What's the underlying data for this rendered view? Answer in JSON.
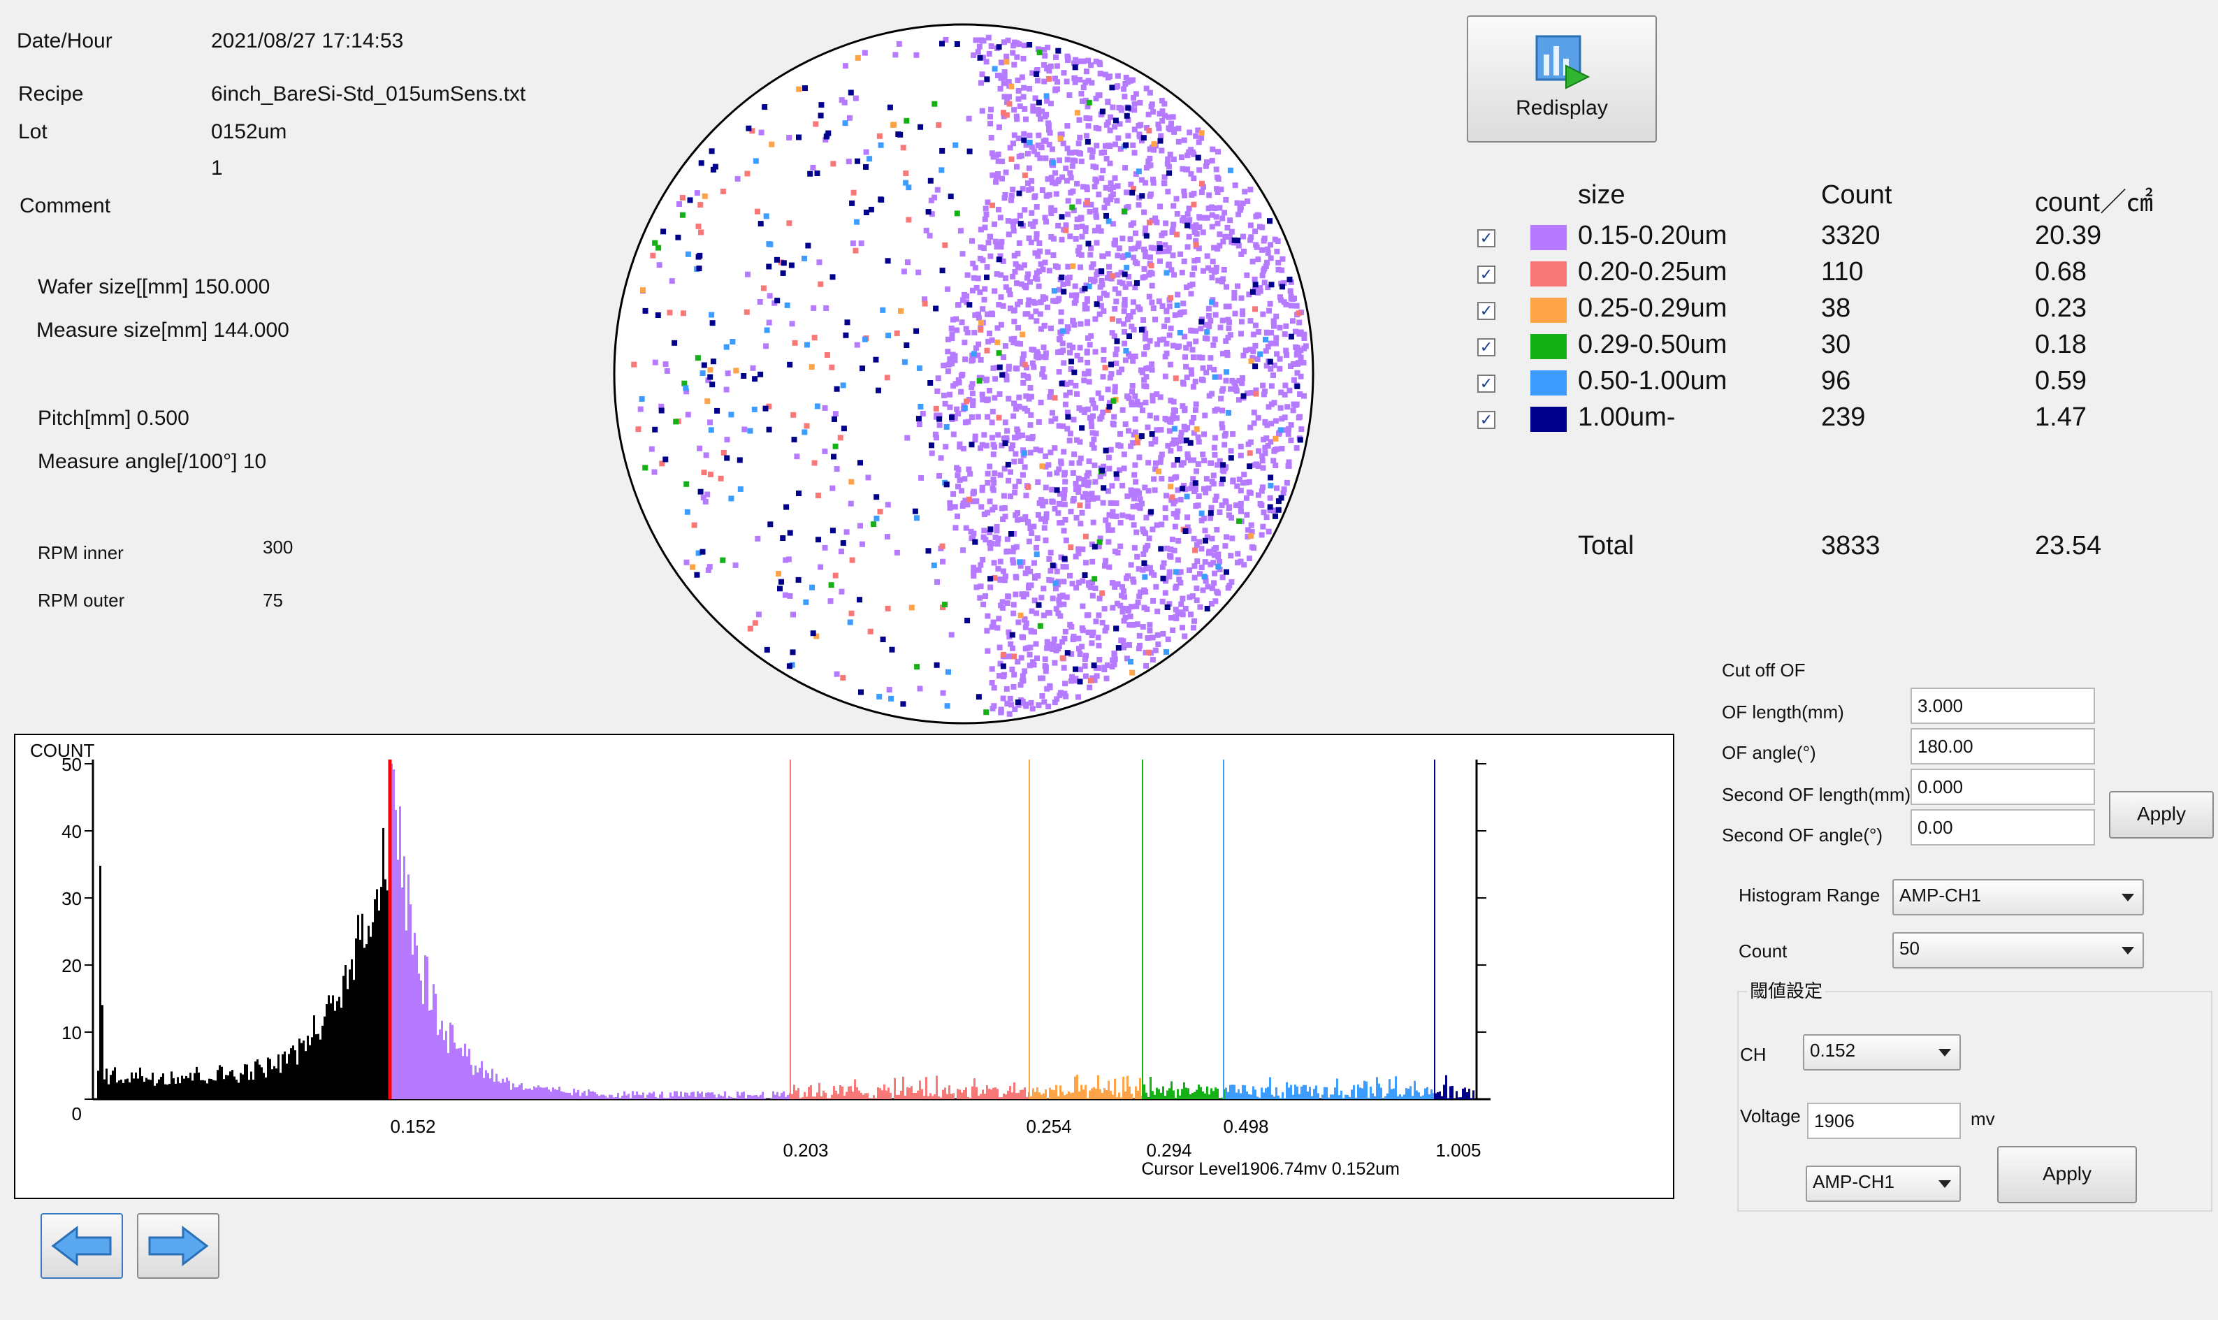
{
  "info": {
    "date_label": "Date/Hour",
    "date_value": "2021/08/27 17:14:53",
    "recipe_label": "Recipe",
    "recipe_value": "6inch_BareSi-Std_015umSens.txt",
    "lot_label": "Lot",
    "lot_value": "0152um",
    "lot_index": "1",
    "comment_label": "Comment",
    "wafer_size": "Wafer size[[mm] 150.000",
    "measure_size": "Measure size[mm] 144.000",
    "pitch": "Pitch[mm] 0.500",
    "measure_angle": "Measure angle[/100°] 10",
    "rpm_inner_label": "RPM inner",
    "rpm_inner_value": "300",
    "rpm_outer_label": "RPM outer",
    "rpm_outer_value": "75"
  },
  "redisplay_label": "Redisplay",
  "table": {
    "headers": {
      "size": "size",
      "count": "Count",
      "density": "count／㎠"
    },
    "rows": [
      {
        "size": "0.15-0.20um",
        "count": "3320",
        "density": "20.39",
        "color": "#b57aff",
        "checked": true
      },
      {
        "size": "0.20-0.25um",
        "count": "110",
        "density": "0.68",
        "color": "#f87878",
        "checked": true
      },
      {
        "size": "0.25-0.29um",
        "count": "38",
        "density": "0.23",
        "color": "#ffa348",
        "checked": true
      },
      {
        "size": "0.29-0.50um",
        "count": "30",
        "density": "0.18",
        "color": "#15b015",
        "checked": true
      },
      {
        "size": "0.50-1.00um",
        "count": "96",
        "density": "0.59",
        "color": "#3c9cff",
        "checked": true
      },
      {
        "size": "1.00um-",
        "count": "239",
        "density": "1.47",
        "color": "#00008b",
        "checked": true
      }
    ],
    "total_label": "Total",
    "total_count": "3833",
    "total_density": "23.54"
  },
  "cutoff": {
    "title": "Cut off OF",
    "of_length_label": "OF length(mm)",
    "of_length_value": "3.000",
    "of_angle_label": "OF angle(°)",
    "of_angle_value": "180.00",
    "second_of_length_label": "Second OF length(mm)",
    "second_of_length_value": "0.000",
    "second_of_angle_label": "Second OF angle(°)",
    "second_of_angle_value": "0.00",
    "apply_label": "Apply"
  },
  "histogram_range": {
    "label": "Histogram Range",
    "value": "AMP-CH1"
  },
  "count_select": {
    "label": "Count",
    "value": "50"
  },
  "threshold": {
    "title": "閾値設定",
    "ch_label": "CH",
    "ch_value": "0.152",
    "voltage_label": "Voltage",
    "voltage_value": "1906",
    "voltage_unit": "mv",
    "amp_value": "AMP-CH1",
    "apply_label": "Apply"
  },
  "chart_data": {
    "type": "bar",
    "ylabel": "COUNT",
    "ylim": [
      0,
      50
    ],
    "y_ticks": [
      "50",
      "40",
      "30",
      "20",
      "10",
      "0"
    ],
    "x_ticks": [
      "0.152",
      "0.203",
      "0.254",
      "0.294",
      "0.498",
      "1.005"
    ],
    "threshold_lines": [
      {
        "label": "0.152",
        "color": "#ff0000"
      },
      {
        "label": "0.203",
        "color": "#f87878"
      },
      {
        "label": "0.254",
        "color": "#ffa348"
      },
      {
        "label": "0.294",
        "color": "#15b015"
      },
      {
        "label": "0.498",
        "color": "#3c9cff"
      },
      {
        "label": "1.005",
        "color": "#00008b"
      }
    ],
    "segments": [
      {
        "name": "below",
        "color": "#000000"
      },
      {
        "name": "0.15-0.20um",
        "color": "#b57aff"
      },
      {
        "name": "0.20-0.25um",
        "color": "#f87878"
      },
      {
        "name": "0.25-0.29um",
        "color": "#ffa348"
      },
      {
        "name": "0.29-0.50um",
        "color": "#15b015"
      },
      {
        "name": "0.50-1.00um",
        "color": "#3c9cff"
      },
      {
        "name": "1.00um-",
        "color": "#00008b"
      }
    ],
    "cursor_text": "Cursor Level1906.74mv 0.152um"
  },
  "wafer_map": {
    "type": "scatter",
    "description_counts": [
      3320,
      110,
      38,
      30,
      96,
      239
    ]
  },
  "nav": {
    "prev": "previous-arrow",
    "next": "next-arrow"
  }
}
